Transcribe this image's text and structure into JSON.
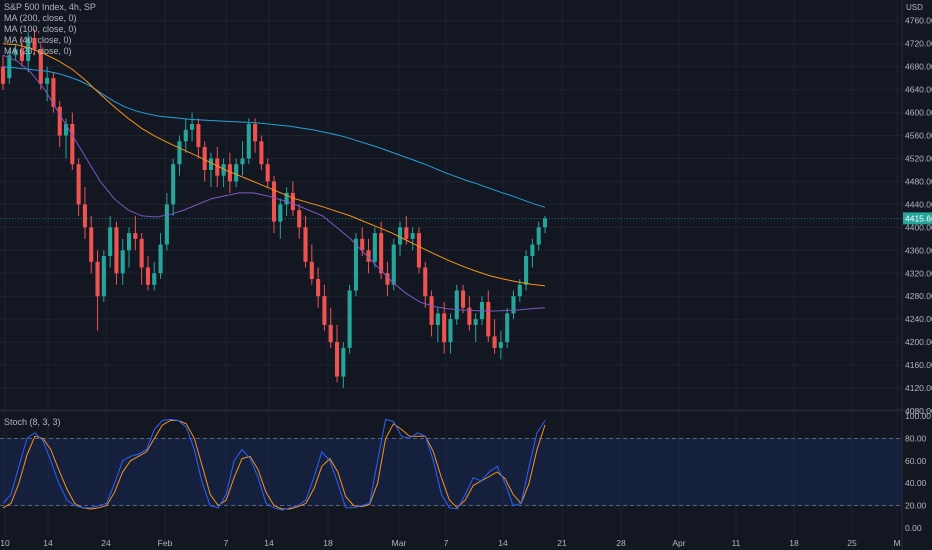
{
  "header": {
    "symbol_title": "S&P 500 Index, 4h, SP",
    "currency": "USD"
  },
  "indicators": [
    {
      "label": "MA (200, close, 0)",
      "color": "#e7d44e"
    },
    {
      "label": "MA (100, close, 0)",
      "color": "#26c6da"
    },
    {
      "label": "MA (40, close, 0)",
      "color": "#f7931a"
    },
    {
      "label": "MA (20, close, 0)",
      "color": "#7e57c2"
    }
  ],
  "stoch_label": "Stoch (8, 3, 3)",
  "colors": {
    "up": "#26a69a",
    "down": "#ef5350",
    "ma100": "#26a0da",
    "ma40": "#f7931a",
    "ma20": "#7e57c2",
    "stoch_k": "#2962ff",
    "stoch_d": "#f7931a"
  },
  "chart_data": [
    {
      "type": "candlestick",
      "title": "S&P 500 Index, 4h, SP",
      "ylim": [
        4080,
        4770
      ],
      "y_ticks": [
        "4760.00",
        "4720.00",
        "4680.00",
        "4640.00",
        "4600.00",
        "4560.00",
        "4520.00",
        "4480.00",
        "4440.00",
        "4400.00",
        "4360.00",
        "4320.00",
        "4280.00",
        "4240.00",
        "4200.00",
        "4160.00",
        "4120.00",
        "4080.00"
      ],
      "last_price": "4415.66",
      "x_ticks": [
        "10",
        "14",
        "24",
        "Feb",
        "7",
        "14",
        "18",
        "Mar",
        "7",
        "14",
        "21",
        "28",
        "Apr",
        "11",
        "18",
        "25",
        "M"
      ],
      "candles": [
        [
          4680,
          4700,
          4640,
          4650
        ],
        [
          4660,
          4710,
          4650,
          4700
        ],
        [
          4700,
          4720,
          4690,
          4710
        ],
        [
          4710,
          4730,
          4680,
          4690
        ],
        [
          4690,
          4740,
          4670,
          4730
        ],
        [
          4730,
          4745,
          4700,
          4710
        ],
        [
          4710,
          4720,
          4640,
          4650
        ],
        [
          4650,
          4680,
          4620,
          4660
        ],
        [
          4660,
          4670,
          4600,
          4610
        ],
        [
          4610,
          4620,
          4540,
          4560
        ],
        [
          4560,
          4590,
          4520,
          4580
        ],
        [
          4580,
          4600,
          4500,
          4510
        ],
        [
          4510,
          4520,
          4420,
          4440
        ],
        [
          4440,
          4470,
          4380,
          4400
        ],
        [
          4400,
          4420,
          4320,
          4340
        ],
        [
          4340,
          4360,
          4220,
          4280
        ],
        [
          4280,
          4360,
          4270,
          4350
        ],
        [
          4350,
          4420,
          4330,
          4400
        ],
        [
          4400,
          4410,
          4300,
          4320
        ],
        [
          4320,
          4380,
          4300,
          4360
        ],
        [
          4360,
          4400,
          4330,
          4390
        ],
        [
          4390,
          4420,
          4360,
          4380
        ],
        [
          4380,
          4390,
          4300,
          4330
        ],
        [
          4330,
          4350,
          4290,
          4300
        ],
        [
          4300,
          4340,
          4290,
          4320
        ],
        [
          4320,
          4390,
          4310,
          4370
        ],
        [
          4370,
          4460,
          4360,
          4440
        ],
        [
          4440,
          4520,
          4420,
          4510
        ],
        [
          4510,
          4560,
          4490,
          4550
        ],
        [
          4550,
          4590,
          4530,
          4570
        ],
        [
          4570,
          4600,
          4550,
          4580
        ],
        [
          4580,
          4590,
          4520,
          4540
        ],
        [
          4540,
          4550,
          4480,
          4500
        ],
        [
          4500,
          4530,
          4470,
          4520
        ],
        [
          4520,
          4540,
          4470,
          4490
        ],
        [
          4490,
          4520,
          4470,
          4510
        ],
        [
          4510,
          4530,
          4460,
          4480
        ],
        [
          4480,
          4520,
          4470,
          4510
        ],
        [
          4510,
          4550,
          4490,
          4520
        ],
        [
          4520,
          4590,
          4510,
          4580
        ],
        [
          4580,
          4590,
          4530,
          4550
        ],
        [
          4550,
          4560,
          4500,
          4510
        ],
        [
          4510,
          4520,
          4470,
          4480
        ],
        [
          4480,
          4490,
          4390,
          4410
        ],
        [
          4410,
          4450,
          4380,
          4440
        ],
        [
          4440,
          4470,
          4420,
          4460
        ],
        [
          4460,
          4480,
          4420,
          4430
        ],
        [
          4430,
          4440,
          4380,
          4400
        ],
        [
          4400,
          4420,
          4330,
          4340
        ],
        [
          4340,
          4370,
          4300,
          4310
        ],
        [
          4310,
          4330,
          4260,
          4280
        ],
        [
          4280,
          4300,
          4220,
          4230
        ],
        [
          4230,
          4260,
          4190,
          4200
        ],
        [
          4200,
          4230,
          4130,
          4140
        ],
        [
          4140,
          4200,
          4120,
          4190
        ],
        [
          4190,
          4300,
          4180,
          4290
        ],
        [
          4290,
          4390,
          4280,
          4380
        ],
        [
          4380,
          4400,
          4350,
          4360
        ],
        [
          4360,
          4380,
          4320,
          4340
        ],
        [
          4340,
          4400,
          4330,
          4390
        ],
        [
          4390,
          4410,
          4310,
          4320
        ],
        [
          4320,
          4340,
          4280,
          4300
        ],
        [
          4300,
          4380,
          4290,
          4370
        ],
        [
          4370,
          4410,
          4350,
          4400
        ],
        [
          4400,
          4420,
          4370,
          4380
        ],
        [
          4380,
          4400,
          4360,
          4390
        ],
        [
          4390,
          4400,
          4320,
          4330
        ],
        [
          4330,
          4340,
          4260,
          4280
        ],
        [
          4280,
          4290,
          4210,
          4230
        ],
        [
          4230,
          4260,
          4200,
          4250
        ],
        [
          4250,
          4270,
          4180,
          4200
        ],
        [
          4200,
          4250,
          4180,
          4240
        ],
        [
          4240,
          4300,
          4230,
          4290
        ],
        [
          4290,
          4300,
          4250,
          4260
        ],
        [
          4260,
          4280,
          4220,
          4230
        ],
        [
          4230,
          4250,
          4200,
          4240
        ],
        [
          4240,
          4280,
          4230,
          4270
        ],
        [
          4270,
          4290,
          4200,
          4210
        ],
        [
          4210,
          4240,
          4180,
          4190
        ],
        [
          4190,
          4220,
          4170,
          4200
        ],
        [
          4200,
          4260,
          4190,
          4250
        ],
        [
          4250,
          4290,
          4240,
          4280
        ],
        [
          4280,
          4310,
          4270,
          4300
        ],
        [
          4300,
          4360,
          4290,
          4350
        ],
        [
          4350,
          4380,
          4330,
          4370
        ],
        [
          4370,
          4410,
          4360,
          4400
        ],
        [
          4400,
          4420,
          4390,
          4415.66
        ]
      ],
      "ma100": [
        4680,
        4678,
        4676,
        4674,
        4672,
        4668,
        4662,
        4655,
        4645,
        4632,
        4620,
        4610,
        4603,
        4598,
        4594,
        4592,
        4590,
        4588,
        4587,
        4586,
        4585,
        4584,
        4583,
        4582,
        4580,
        4578,
        4576,
        4573,
        4570,
        4566,
        4562,
        4557,
        4551,
        4545,
        4539,
        4532,
        4525,
        4518,
        4511,
        4503,
        4495,
        4488,
        4481,
        4475,
        4468,
        4461,
        4455,
        4448,
        4441,
        4435
      ],
      "ma40": [
        4720,
        4718,
        4712,
        4702,
        4690,
        4675,
        4655,
        4632,
        4610,
        4590,
        4572,
        4558,
        4546,
        4535,
        4524,
        4512,
        4500,
        4490,
        4480,
        4470,
        4460,
        4450,
        4443,
        4436,
        4428,
        4420,
        4410,
        4400,
        4390,
        4378,
        4366,
        4354,
        4343,
        4333,
        4324,
        4316,
        4310,
        4305,
        4301,
        4298
      ],
      "ma20": [
        4700,
        4690,
        4670,
        4640,
        4600,
        4560,
        4520,
        4480,
        4450,
        4430,
        4420,
        4418,
        4422,
        4430,
        4440,
        4450,
        4455,
        4460,
        4460,
        4455,
        4448,
        4440,
        4430,
        4420,
        4400,
        4380,
        4355,
        4330,
        4305,
        4285,
        4270,
        4262,
        4258,
        4256,
        4255,
        4254,
        4255,
        4256,
        4258,
        4260
      ],
      "stoch_k": [
        22,
        30,
        55,
        80,
        85,
        78,
        60,
        40,
        25,
        20,
        18,
        18,
        20,
        22,
        40,
        60,
        64,
        66,
        70,
        88,
        96,
        97,
        96,
        90,
        70,
        40,
        20,
        18,
        30,
        60,
        70,
        62,
        45,
        22,
        18,
        16,
        18,
        20,
        25,
        45,
        68,
        60,
        40,
        18,
        18,
        20,
        22,
        60,
        97,
        95,
        82,
        80,
        85,
        82,
        60,
        30,
        18,
        17,
        30,
        45,
        42,
        50,
        55,
        40,
        20,
        22,
        55,
        85,
        96
      ],
      "stoch_d": [
        18,
        22,
        40,
        65,
        82,
        80,
        70,
        52,
        35,
        22,
        18,
        17,
        18,
        20,
        32,
        50,
        60,
        64,
        68,
        80,
        92,
        96,
        96,
        93,
        80,
        55,
        30,
        20,
        25,
        45,
        62,
        64,
        52,
        32,
        20,
        17,
        17,
        19,
        22,
        35,
        55,
        62,
        50,
        28,
        20,
        19,
        21,
        40,
        80,
        93,
        88,
        82,
        82,
        82,
        68,
        45,
        25,
        18,
        25,
        38,
        42,
        46,
        50,
        44,
        30,
        22,
        40,
        70,
        92
      ],
      "stoch_levels": [
        "100.00",
        "80.00",
        "60.00",
        "40.00",
        "20.00",
        "0.00"
      ],
      "stoch_ylim": [
        0,
        100
      ]
    }
  ]
}
